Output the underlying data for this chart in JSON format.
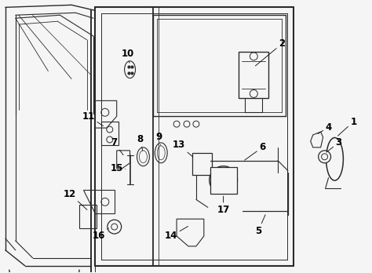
{
  "background_color": "#f5f5f5",
  "line_color": "#2a2a2a",
  "text_color": "#000000",
  "fig_width": 4.74,
  "fig_height": 3.48,
  "dpi": 100
}
